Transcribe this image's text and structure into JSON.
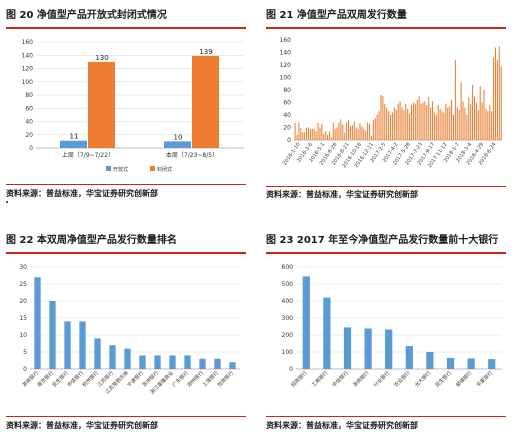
{
  "colors": {
    "accent_red": "#c8261c",
    "blue": "#5b9bd5",
    "orange": "#ed7d31",
    "grid": "#d9d9d9",
    "axis": "#a6a6a6"
  },
  "panels": [
    {
      "title": "图 20 净值型产品开放式封闭式情况",
      "source": "资料来源：普益标准，华宝证券研究创新部"
    },
    {
      "title": "图 21 净值型产品双周发行数量",
      "source": "资料来源：普益标准，华宝证券研究创新部"
    },
    {
      "title": "图 22 本双周净值型产品发行数量排名",
      "source": "资料来源：普益标准，华宝证券研究创新部"
    },
    {
      "title": "图 23 2017 年至今净值型产品发行数量前十大银行",
      "source": "资料来源：普益标准，华宝证券研究创新部"
    }
  ],
  "chart_data": [
    {
      "type": "bar",
      "categories": [
        "上周（7/9~7/22）",
        "本周（7/23~8/5）"
      ],
      "series": [
        {
          "name": "开放式",
          "values": [
            11,
            10
          ],
          "labels": [
            "11",
            "10"
          ]
        },
        {
          "name": "封闭式",
          "values": [
            130,
            139
          ],
          "labels": [
            "130",
            "139"
          ]
        }
      ],
      "ylim": [
        0,
        160
      ],
      "yticks": [
        "0",
        "20",
        "40",
        "60",
        "80",
        "100",
        "120",
        "140",
        "160"
      ],
      "grid": true,
      "legend_position": "bottom"
    },
    {
      "type": "bar",
      "values": [
        27,
        8,
        28,
        19,
        12,
        12,
        20,
        20,
        18,
        18,
        18,
        14,
        27,
        20,
        26,
        10,
        14,
        8,
        14,
        4,
        28,
        18,
        20,
        28,
        33,
        25,
        12,
        28,
        32,
        22,
        24,
        30,
        20,
        18,
        27,
        22,
        18,
        14,
        28,
        26,
        6,
        32,
        35,
        40,
        46,
        72,
        70,
        58,
        52,
        46,
        40,
        44,
        52,
        48,
        58,
        62,
        52,
        48,
        58,
        50,
        42,
        56,
        60,
        58,
        64,
        70,
        58,
        60,
        62,
        56,
        68,
        52,
        62,
        44,
        40,
        56,
        50,
        46,
        44,
        58,
        52,
        54,
        64,
        40,
        128,
        52,
        48,
        92,
        62,
        52,
        40,
        68,
        58,
        88,
        70,
        60,
        48,
        86,
        60,
        80,
        50,
        46,
        56,
        46,
        132,
        148,
        128,
        150,
        118
      ],
      "xticks": [
        "2016-1-10",
        "2016-3-6",
        "2016-5-1",
        "2016-6-26",
        "2016-8-21",
        "2016-10-16",
        "2016-12-11",
        "2017-2-5",
        "2017-4-2",
        "2017-5-28",
        "2017-7-23",
        "2017-9-17",
        "2017-11-12",
        "2018-1-7",
        "2018-3-4",
        "2018-4-29",
        "2018-6-24"
      ],
      "ylim": [
        0,
        160
      ],
      "yticks": [
        "0",
        "20",
        "40",
        "60",
        "80",
        "100",
        "120",
        "140",
        "160"
      ],
      "grid": false
    },
    {
      "type": "bar",
      "categories": [
        "浙商银行",
        "南京银行",
        "民生银行",
        "中信银行",
        "杭州银行",
        "江苏银行",
        "江苏常熟农商",
        "宁波银行",
        "苏州银行",
        "浙江泰隆商业",
        "广东银行",
        "郑州银行",
        "上海银行",
        "包商银行"
      ],
      "values": [
        27,
        20,
        14,
        14,
        9,
        7,
        6,
        4,
        4,
        4,
        4,
        3,
        3,
        2
      ],
      "ylim": [
        0,
        30
      ],
      "yticks": [
        "0",
        "5",
        "10",
        "15",
        "20",
        "25",
        "30"
      ],
      "grid": true
    },
    {
      "type": "bar",
      "categories": [
        "招商银行",
        "工商银行",
        "中信银行",
        "浙商银行",
        "兴业银行",
        "农业银行",
        "光大银行",
        "民生银行",
        "邮储银行",
        "华夏银行"
      ],
      "values": [
        545,
        420,
        245,
        238,
        232,
        135,
        100,
        65,
        62,
        58
      ],
      "ylim": [
        0,
        600
      ],
      "yticks": [
        "0",
        "100",
        "200",
        "300",
        "400",
        "500",
        "600"
      ],
      "grid": true
    }
  ]
}
